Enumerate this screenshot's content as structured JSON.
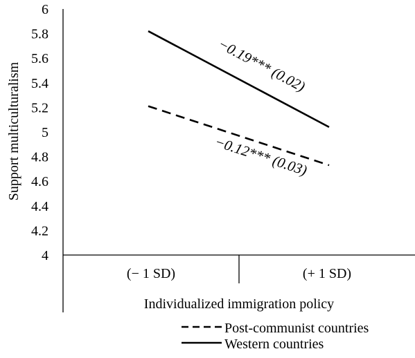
{
  "colors": {
    "background": "#ffffff",
    "ink": "#000000"
  },
  "chart_data": {
    "type": "line",
    "title": "",
    "xlabel": "Individualized immigration policy",
    "ylabel": "Support multiculturalism",
    "categories": [
      "(− 1 SD)",
      "(+ 1 SD)"
    ],
    "ylim": [
      4,
      6
    ],
    "yticks": [
      "4",
      "4.2",
      "4.4",
      "4.6",
      "4.8",
      "5",
      "5.2",
      "5.4",
      "5.6",
      "5.8",
      "6"
    ],
    "grid": false,
    "legend_position": "bottom-right",
    "series": [
      {
        "name": "Post-communist countries",
        "style": "dashed",
        "values": [
          5.21,
          4.73
        ],
        "annotation": "−0.12*** (0.03)"
      },
      {
        "name": "Western countries",
        "style": "solid",
        "values": [
          5.82,
          5.04
        ],
        "annotation": "−0.19*** (0.02)"
      }
    ]
  }
}
